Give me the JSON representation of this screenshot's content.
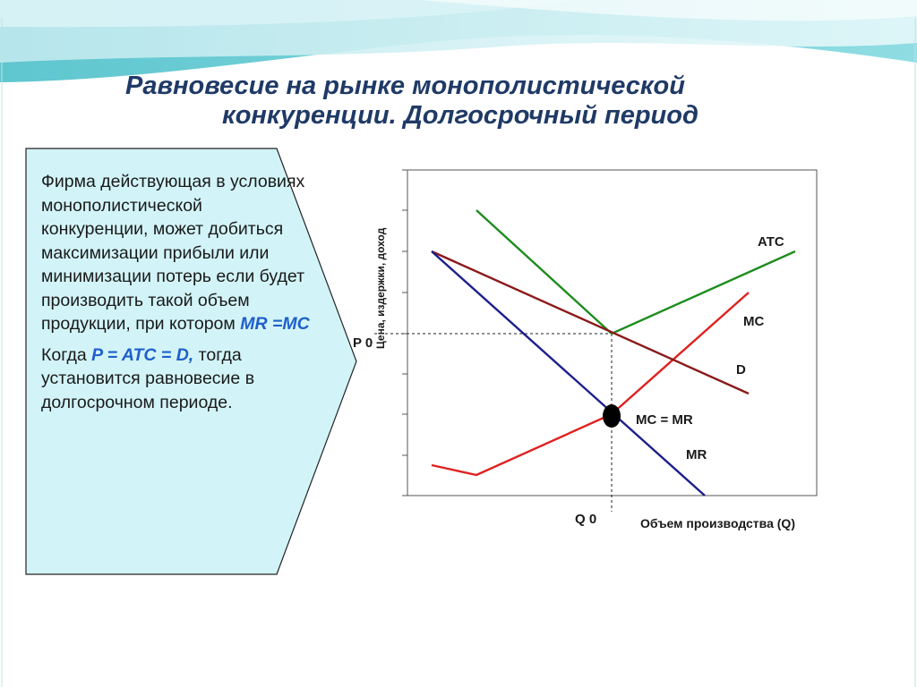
{
  "title": {
    "line1": "Равновесие на рынке монополистической",
    "line2": "конкуренции. Долгосрочный период"
  },
  "callout": {
    "para1": "Фирма действующая в условиях монополистической конкуренции, может добиться максимизации прибыли или минимизации потерь если будет производить такой объем продукции, при котором",
    "para1_highlight": "MR =MC",
    "para2_prefix": "Когда",
    "para2_highlight": "P = ATC = D,",
    "para2_suffix": "тогда установится равновесие в долгосрочном периоде."
  },
  "chart": {
    "y_axis_label": "Цена, издержки, доход",
    "x_axis_label": "Объем производства (Q)",
    "p0_label": "P 0",
    "q0_label": "Q 0",
    "curve_labels": {
      "atc": "ATC",
      "mc": "MC",
      "d": "D",
      "mc_mr": "MC = MR",
      "mr": "MR"
    },
    "colors": {
      "atc": "#1e8c1e",
      "mc": "#e02020",
      "d": "#8b1a1a",
      "mr": "#1c1f8c"
    }
  }
}
